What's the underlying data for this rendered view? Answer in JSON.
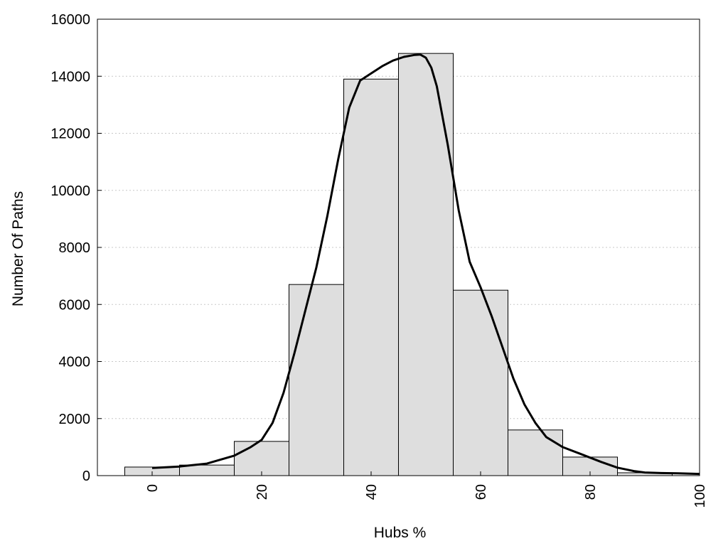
{
  "chart_data": {
    "type": "bar",
    "title": "",
    "xlabel": "Hubs %",
    "ylabel": "Number Of Paths",
    "xlim": [
      -10,
      100
    ],
    "ylim": [
      0,
      16000
    ],
    "grid": "horizontal-dotted",
    "x_ticks": [
      0,
      20,
      40,
      60,
      80,
      100
    ],
    "y_ticks": [
      0,
      2000,
      4000,
      6000,
      8000,
      10000,
      12000,
      14000,
      16000
    ],
    "bin_width": 10,
    "bins": [
      {
        "x": 0,
        "value": 300
      },
      {
        "x": 10,
        "value": 370
      },
      {
        "x": 20,
        "value": 1200
      },
      {
        "x": 30,
        "value": 6700
      },
      {
        "x": 40,
        "value": 13900
      },
      {
        "x": 50,
        "value": 14800
      },
      {
        "x": 60,
        "value": 6500
      },
      {
        "x": 70,
        "value": 1600
      },
      {
        "x": 80,
        "value": 650
      },
      {
        "x": 90,
        "value": 100
      }
    ],
    "curve": {
      "type": "line",
      "x": [
        0,
        5,
        10,
        15,
        18,
        20,
        22,
        24,
        26,
        28,
        30,
        32,
        34,
        36,
        38,
        40,
        42,
        44,
        46,
        48,
        49,
        50,
        51,
        52,
        54,
        56,
        58,
        60,
        62,
        64,
        66,
        68,
        70,
        72,
        75,
        78,
        80,
        82,
        85,
        88,
        90,
        93,
        96,
        100
      ],
      "y": [
        270,
        320,
        420,
        700,
        1000,
        1250,
        1850,
        2900,
        4300,
        5800,
        7300,
        9100,
        11100,
        12900,
        13850,
        14100,
        14350,
        14550,
        14680,
        14750,
        14760,
        14650,
        14300,
        13650,
        11600,
        9300,
        7500,
        6600,
        5600,
        4500,
        3400,
        2500,
        1850,
        1350,
        1000,
        780,
        630,
        480,
        280,
        160,
        110,
        90,
        80,
        60
      ]
    },
    "colors": {
      "bar_fill": "#dedede",
      "bar_stroke": "#000000",
      "curve": "#000000"
    }
  }
}
